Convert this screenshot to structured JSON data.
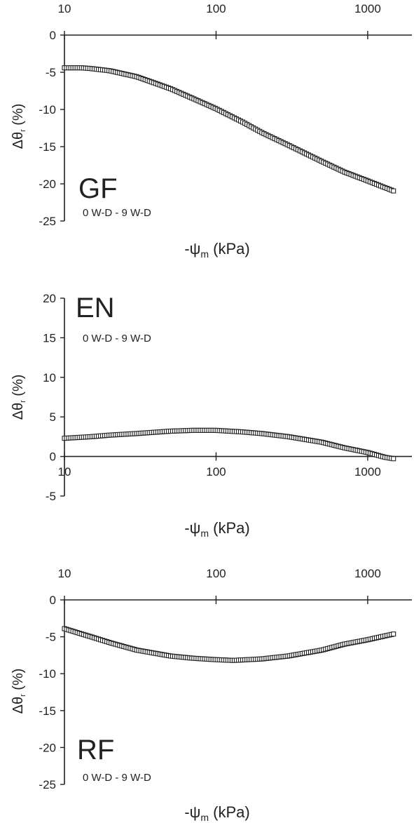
{
  "chart_data": [
    {
      "type": "scatter",
      "title": "GF",
      "annotation": "0 W-D - 9 W-D",
      "xlabel": "-ψ",
      "xlabel_sub": "m",
      "xlabel_unit": "(kPa)",
      "ylabel": "Δθ",
      "ylabel_sub": "r",
      "ylabel_unit": "(%)",
      "x_scale": "log",
      "xlim": [
        10,
        1500
      ],
      "ylim": [
        -25,
        0
      ],
      "x_ticks": [
        "10",
        "100",
        "1000"
      ],
      "y_ticks": [
        "0",
        "-5",
        "-10",
        "-15",
        "-20",
        "-25"
      ],
      "x_tick_position": "top",
      "marker": "open-square",
      "series": [
        {
          "x": [
            10,
            13,
            15,
            20,
            30,
            50,
            70,
            100,
            150,
            200,
            300,
            500,
            700,
            1000,
            1500
          ],
          "values": [
            -4.4,
            -4.4,
            -4.5,
            -4.8,
            -5.6,
            -7.2,
            -8.5,
            -9.9,
            -11.7,
            -13.1,
            -14.8,
            -17.0,
            -18.4,
            -19.6,
            -21.0
          ]
        }
      ]
    },
    {
      "type": "scatter",
      "title": "EN",
      "annotation": "0 W-D - 9 W-D",
      "xlabel": "-ψ",
      "xlabel_sub": "m",
      "xlabel_unit": "(kPa)",
      "ylabel": "Δθ",
      "ylabel_sub": "r",
      "ylabel_unit": "(%)",
      "x_scale": "log",
      "xlim": [
        10,
        1500
      ],
      "ylim": [
        -5,
        20
      ],
      "x_ticks": [
        "10",
        "100",
        "1000"
      ],
      "y_ticks": [
        "20",
        "15",
        "10",
        "5",
        "0",
        "-5"
      ],
      "x_tick_position": "zero",
      "marker": "open-square",
      "series": [
        {
          "x": [
            10,
            15,
            20,
            30,
            50,
            70,
            100,
            150,
            200,
            300,
            500,
            700,
            1000,
            1300,
            1500
          ],
          "values": [
            2.3,
            2.5,
            2.7,
            2.9,
            3.2,
            3.3,
            3.3,
            3.1,
            2.9,
            2.5,
            1.8,
            1.1,
            0.5,
            -0.1,
            -0.3
          ]
        }
      ]
    },
    {
      "type": "scatter",
      "title": "RF",
      "annotation": "0 W-D - 9 W-D",
      "xlabel": "-ψ",
      "xlabel_sub": "m",
      "xlabel_unit": "(kPa)",
      "ylabel": "Δθ",
      "ylabel_sub": "r",
      "ylabel_unit": "(%)",
      "x_scale": "log",
      "xlim": [
        10,
        1500
      ],
      "ylim": [
        -25,
        0
      ],
      "x_ticks": [
        "10",
        "100",
        "1000"
      ],
      "y_ticks": [
        "0",
        "-5",
        "-10",
        "-15",
        "-20",
        "-25"
      ],
      "x_tick_position": "top",
      "marker": "open-square",
      "series": [
        {
          "x": [
            10,
            12,
            15,
            20,
            30,
            50,
            70,
            100,
            130,
            200,
            300,
            500,
            700,
            1000,
            1500
          ],
          "values": [
            -3.9,
            -4.4,
            -5.0,
            -5.8,
            -6.8,
            -7.6,
            -7.9,
            -8.1,
            -8.2,
            -8.0,
            -7.6,
            -6.8,
            -6.0,
            -5.4,
            -4.6
          ]
        }
      ]
    }
  ]
}
